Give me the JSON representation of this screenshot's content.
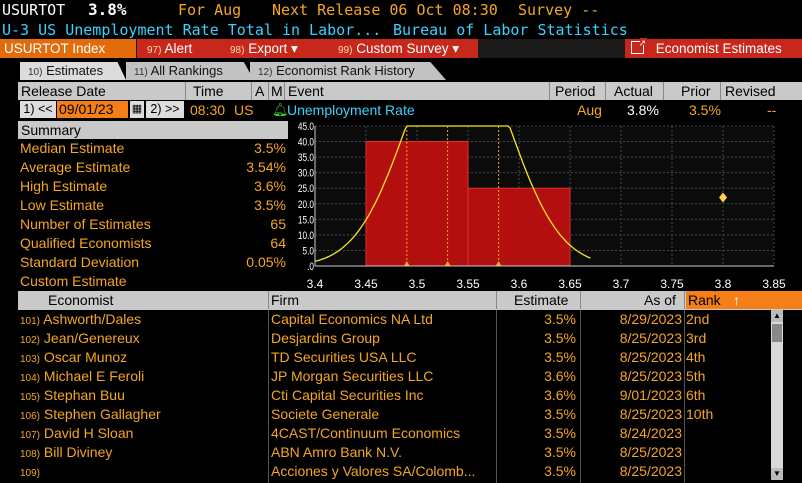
{
  "header": {
    "ticker": "USURTOT",
    "value": "3.8%",
    "for_label": "For Aug",
    "next_release": "Next Release 06 Oct 08:30",
    "survey": "Survey --",
    "description": "U-3 US Unemployment Rate Total in Labor...",
    "source": "Bureau of Labor Statistics"
  },
  "menu": {
    "index_label": "USURTOT Index",
    "alert": {
      "key": "97)",
      "label": "Alert"
    },
    "export": {
      "key": "98)",
      "label": "Export ▾"
    },
    "custom_survey": {
      "key": "99)",
      "label": "Custom Survey ▾"
    },
    "economist_estimates": "Economist Estimates"
  },
  "tabs": [
    {
      "key": "10)",
      "label": "Estimates"
    },
    {
      "key": "11)",
      "label": "All Rankings"
    },
    {
      "key": "12)",
      "label": "Economist Rank History"
    }
  ],
  "columns": {
    "release_date": "Release Date",
    "time": "Time",
    "a": "A",
    "m": "M",
    "event": "Event",
    "period": "Period",
    "actual": "Actual",
    "prior": "Prior",
    "revised": "Revised"
  },
  "release": {
    "prev_key": "1) <<",
    "date": "09/01/23",
    "next_key": "2) >>",
    "time": "08:30",
    "country": "US",
    "event": "Unemployment Rate",
    "period": "Aug",
    "actual": "3.8%",
    "prior": "3.5%",
    "revised": "--"
  },
  "summary": {
    "title": "Summary",
    "rows": [
      {
        "label": "Median Estimate",
        "value": "3.5%"
      },
      {
        "label": "Average Estimate",
        "value": "3.54%"
      },
      {
        "label": "High Estimate",
        "value": "3.6%"
      },
      {
        "label": "Low Estimate",
        "value": "3.5%"
      },
      {
        "label": "Number of Estimates",
        "value": "65"
      },
      {
        "label": "Qualified Economists",
        "value": "64"
      },
      {
        "label": "Standard Deviation",
        "value": "0.05%"
      },
      {
        "label": "Custom Estimate",
        "value": ""
      }
    ]
  },
  "chart_data": {
    "type": "bar",
    "bins": [
      {
        "from": 3.45,
        "to": 3.55,
        "value": 40
      },
      {
        "from": 3.55,
        "to": 3.65,
        "value": 25
      }
    ],
    "xticks": [
      "3.4",
      "3.45",
      "3.5",
      "3.55",
      "3.6",
      "3.65",
      "3.7",
      "3.75",
      "3.8",
      "3.85"
    ],
    "xlim": [
      3.4,
      3.85
    ],
    "yticks": [
      "45.0",
      "40.0",
      "35.0",
      "30.0",
      "25.0",
      "20.0",
      "15.0",
      "10.0",
      "5.0",
      ".0"
    ],
    "ylim": [
      0,
      45
    ],
    "curve": {
      "mean": 3.54,
      "std": 0.05,
      "peak": 45
    },
    "markers": {
      "low": 3.49,
      "median": 3.53,
      "high": 3.58
    },
    "actual": {
      "x": 3.8,
      "y": 22
    },
    "grid": true,
    "colors": {
      "bar": "#b30f0f",
      "curve": "#f5e61e",
      "marker": "#f5a623",
      "actual": "#ffd24a"
    }
  },
  "table": {
    "headers": {
      "economist": "Economist",
      "firm": "Firm",
      "estimate": "Estimate",
      "as_of": "As of",
      "rank": "Rank"
    },
    "rows": [
      {
        "n": "101)",
        "economist": "Ashworth/Dales",
        "firm": "Capital Economics NA Ltd",
        "estimate": "3.5%",
        "as_of": "8/29/2023",
        "rank": "2nd"
      },
      {
        "n": "102)",
        "economist": "Jean/Genereux",
        "firm": "Desjardins Group",
        "estimate": "3.5%",
        "as_of": "8/25/2023",
        "rank": "3rd"
      },
      {
        "n": "103)",
        "economist": "Oscar Munoz",
        "firm": "TD Securities USA LLC",
        "estimate": "3.5%",
        "as_of": "8/25/2023",
        "rank": "4th"
      },
      {
        "n": "104)",
        "economist": "Michael E Feroli",
        "firm": "JP Morgan Securities LLC",
        "estimate": "3.6%",
        "as_of": "8/25/2023",
        "rank": "5th"
      },
      {
        "n": "105)",
        "economist": "Stephan Buu",
        "firm": "Cti Capital Securities Inc",
        "estimate": "3.6%",
        "as_of": "9/01/2023",
        "rank": "6th"
      },
      {
        "n": "106)",
        "economist": "Stephen Gallagher",
        "firm": "Societe Generale",
        "estimate": "3.5%",
        "as_of": "8/25/2023",
        "rank": "10th"
      },
      {
        "n": "107)",
        "economist": "David H Sloan",
        "firm": "4CAST/Continuum Economics",
        "estimate": "3.5%",
        "as_of": "8/24/2023",
        "rank": ""
      },
      {
        "n": "108)",
        "economist": "Bill Diviney",
        "firm": "ABN Amro Bank N.V.",
        "estimate": "3.5%",
        "as_of": "8/25/2023",
        "rank": ""
      },
      {
        "n": "109)",
        "economist": "",
        "firm": "Acciones y Valores SA/Colomb...",
        "estimate": "3.5%",
        "as_of": "8/25/2023",
        "rank": ""
      }
    ]
  }
}
